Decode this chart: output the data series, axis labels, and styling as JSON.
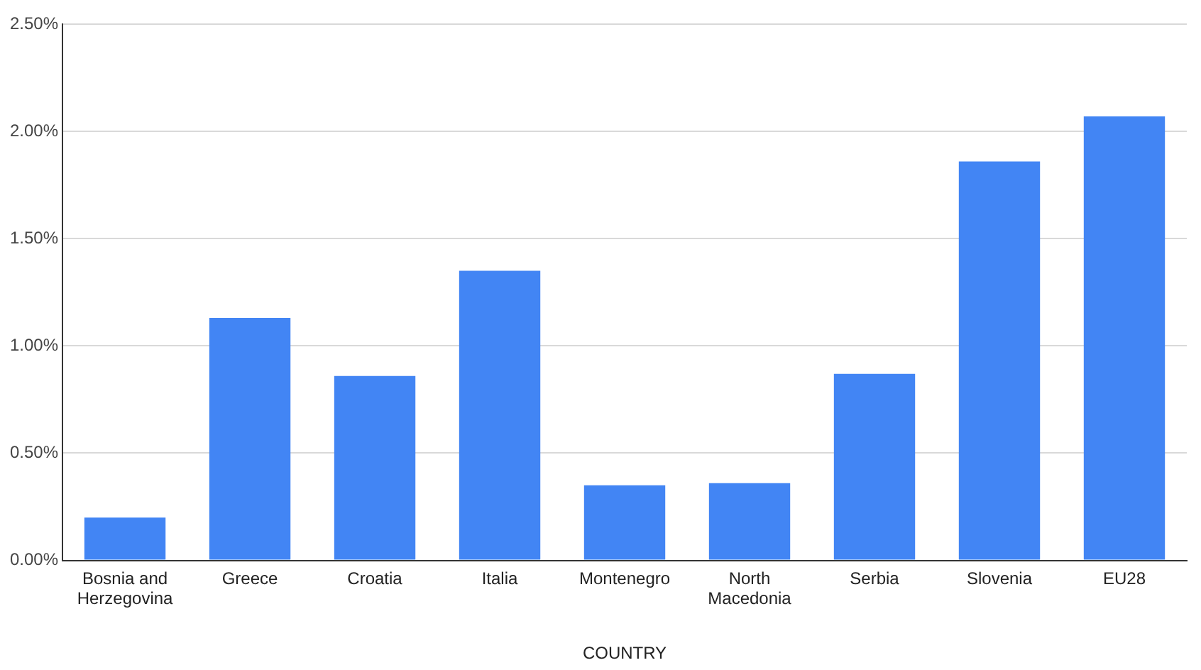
{
  "chart_data": {
    "type": "bar",
    "xlabel": "COUNTRY",
    "categories": [
      "Bosnia and Herzegovina",
      "Greece",
      "Croatia",
      "Italia",
      "Montenegro",
      "North Macedonia",
      "Serbia",
      "Slovenia",
      "EU28"
    ],
    "values": [
      0.2,
      1.13,
      0.86,
      1.35,
      0.35,
      0.36,
      0.87,
      1.86,
      2.07
    ],
    "color": "#4285f4",
    "ylim": [
      0,
      2.5
    ],
    "yticks": [
      {
        "value": 0,
        "label": "0.00%"
      },
      {
        "value": 0.5,
        "label": "0.50%"
      },
      {
        "value": 1,
        "label": "1.00%"
      },
      {
        "value": 1.5,
        "label": "1.50%"
      },
      {
        "value": 2,
        "label": "2.00%"
      },
      {
        "value": 2.5,
        "label": "2.50%"
      }
    ],
    "grid": "y",
    "legend": false
  }
}
